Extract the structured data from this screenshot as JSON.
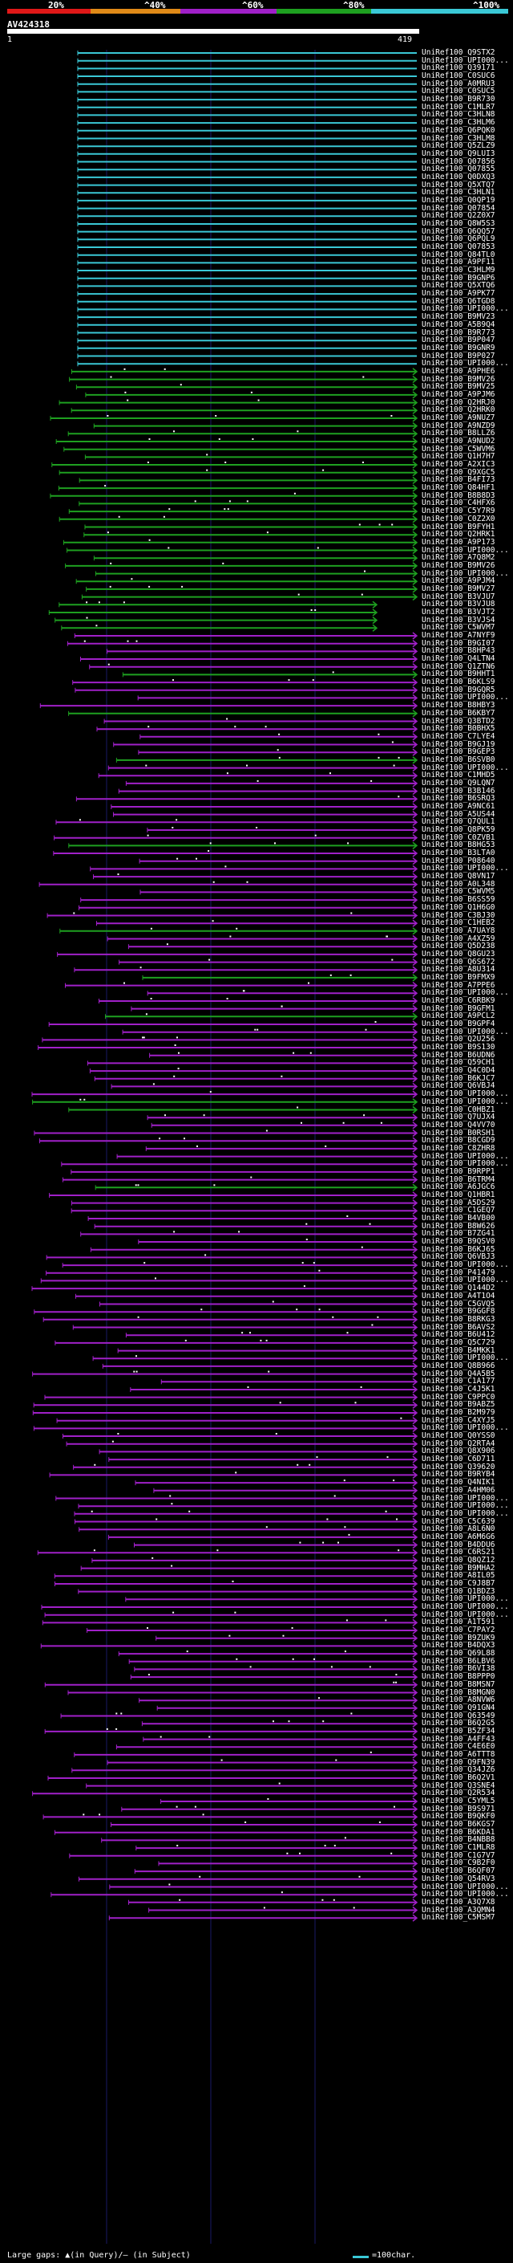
{
  "scale": {
    "labels": [
      "20%",
      "^40%",
      "^60%",
      "^80%",
      "^100%"
    ],
    "colors": [
      "#e01818",
      "#e08a18",
      "#a020c8",
      "#1ea020",
      "#3ac8d6"
    ]
  },
  "query": {
    "name": "AV424318",
    "start": "1",
    "end": "419"
  },
  "hits": [
    "UniRef100_Q9STX2",
    "UniRef100_UPI000...",
    "UniRef100_Q39171",
    "UniRef100_C0SUC6",
    "UniRef100_A0MRU3",
    "UniRef100_C0SUC5",
    "UniRef100_B9R730",
    "UniRef100_C1MLR7",
    "UniRef100_C3HLN8",
    "UniRef100_C3HLM6",
    "UniRef100_Q6PQK0",
    "UniRef100_C3HLM8",
    "UniRef100_Q5ZLZ9",
    "UniRef100_Q9LUI3",
    "UniRef100_Q07856",
    "UniRef100_Q07855",
    "UniRef100_Q0DXQ3",
    "UniRef100_Q5XTQ7",
    "UniRef100_C3HLN1",
    "UniRef100_Q0QP19",
    "UniRef100_Q07854",
    "UniRef100_Q2Z0X7",
    "UniRef100_Q8W5S3",
    "UniRef100_Q6QQ57",
    "UniRef100_Q6PQL9",
    "UniRef100_Q07853",
    "UniRef100_Q84TL0",
    "UniRef100_A9PF11",
    "UniRef100_C3HLM9",
    "UniRef100_B9GNP6",
    "UniRef100_Q5XTQ6",
    "UniRef100_A9PK77",
    "UniRef100_Q6TGD8",
    "UniRef100_UPI000...",
    "UniRef100_B9MV23",
    "UniRef100_A5B9Q4",
    "UniRef100_B9R773",
    "UniRef100_B9P047",
    "UniRef100_B9GNR9",
    "UniRef100_B9P027",
    "UniRef100_UPI000...",
    "UniRef100_A9PHE6",
    "UniRef100_B9MV26",
    "UniRef100_B9MV25",
    "UniRef100_A9PJM6",
    "UniRef100_Q2HRJ0",
    "UniRef100_Q2HRK0",
    "UniRef100_A9NUZ7",
    "UniRef100_A9NZD9",
    "UniRef100_B8LLZ6",
    "UniRef100_A9NUD2",
    "UniRef100_C5WVM6",
    "UniRef100_Q1H7H7",
    "UniRef100_A2XIC3",
    "UniRef100_Q9XGC5",
    "UniRef100_B4FI73",
    "UniRef100_Q84HF1",
    "UniRef100_B8B8D3",
    "UniRef100_C4HFX6",
    "UniRef100_C5Y7R9",
    "UniRef100_C0Z2X0",
    "UniRef100_B9FYH1",
    "UniRef100_Q2HRK1",
    "UniRef100_A9P173",
    "UniRef100_UPI000...",
    "UniRef100_A7Q8M2",
    "UniRef100_B9MV26",
    "UniRef100_UPI000...",
    "UniRef100_A9PJM4",
    "UniRef100_B9MV27",
    "UniRef100_B3VJU7",
    "UniRef100_B3VJU8",
    "UniRef100_B3VJT2",
    "UniRef100_B3VJS4",
    "UniRef100_C5WVM7",
    "UniRef100_A7NYF9",
    "UniRef100_B9GI07",
    "UniRef100_B8HP43",
    "UniRef100_Q4LTN4",
    "UniRef100_Q1ZTN6",
    "UniRef100_B9HHT1",
    "UniRef100_B6KLS9",
    "UniRef100_B9GQR5",
    "UniRef100_UPI000...",
    "UniRef100_B8HBY3",
    "UniRef100_B6KBY7",
    "UniRef100_Q3BTD2",
    "UniRef100_B0BHX5",
    "UniRef100_C7LYE4",
    "UniRef100_B9GJ19",
    "UniRef100_B9GEP3",
    "UniRef100_B6SVB0",
    "UniRef100_UPI000...",
    "UniRef100_C1MHD5",
    "UniRef100_Q9LQN7",
    "UniRef100_B3B146",
    "UniRef100_B6SRQ3",
    "UniRef100_A9NC61",
    "UniRef100_A5US44",
    "UniRef100_Q7QUL1",
    "UniRef100_Q8PK59",
    "UniRef100_C0ZVB1",
    "UniRef100_B8HG53",
    "UniRef100_B3LTA0",
    "UniRef100_P08640",
    "UniRef100_UPI000...",
    "UniRef100_Q8VN17",
    "UniRef100_A0L348",
    "UniRef100_C5WVM5",
    "UniRef100_B6SS59",
    "UniRef100_Q1H6G0",
    "UniRef100_C3BJ30",
    "UniRef100_C1HEB2",
    "UniRef100_A7UAY8",
    "UniRef100_A4XZ59",
    "UniRef100_Q5D238",
    "UniRef100_Q8GU23",
    "UniRef100_Q6S672",
    "UniRef100_A8U314",
    "UniRef100_B9FMX9",
    "UniRef100_A7PPE6",
    "UniRef100_UPI000...",
    "UniRef100_C6RBK9",
    "UniRef100_B9GFM1",
    "UniRef100_A9PCL2",
    "UniRef100_B9GPF4",
    "UniRef100_UPI000...",
    "UniRef100_Q2U256",
    "UniRef100_B9S130",
    "UniRef100_B6UDN6",
    "UniRef100_Q59CH1",
    "UniRef100_Q4C0D4",
    "UniRef100_B6KJC7",
    "UniRef100_Q6VBJ4",
    "UniRef100_UPI000...",
    "UniRef100_UPI000...",
    "UniRef100_C0HBZ1",
    "UniRef100_Q7UJX4",
    "UniRef100_Q4VV70",
    "UniRef100_B0RSH1",
    "UniRef100_B8CGD9",
    "UniRef100_C8ZHR8",
    "UniRef100_UPI000...",
    "UniRef100_UPI000...",
    "UniRef100_B9RPP1",
    "UniRef100_B6TRM4",
    "UniRef100_A6JGC6",
    "UniRef100_Q1HBR1",
    "UniRef100_A5DS29",
    "UniRef100_C1GEQ7",
    "UniRef100_B4VB00",
    "UniRef100_B8W626",
    "UniRef100_B7ZG41",
    "UniRef100_B9QSV0",
    "UniRef100_B6KJ65",
    "UniRef100_Q6VBJ3",
    "UniRef100_UPI000...",
    "UniRef100_P41479",
    "UniRef100_UPI000...",
    "UniRef100_Q144D2",
    "UniRef100_A4T1O4",
    "UniRef100_C5GVQ5",
    "UniRef100_B9GGF8",
    "UniRef100_B8RKG3",
    "UniRef100_B6AVS2",
    "UniRef100_B6U412",
    "UniRef100_Q5C729",
    "UniRef100_B4MKK1",
    "UniRef100_UPI000...",
    "UniRef100_Q8B966",
    "UniRef100_Q4A5B5",
    "UniRef100_C1A177",
    "UniRef100_C4J5K1",
    "UniRef100_C9PPC0",
    "UniRef100_B9ABZ5",
    "UniRef100_B2M979",
    "UniRef100_C4XYJ5",
    "UniRef100_UPI000...",
    "UniRef100_Q0YSS0",
    "UniRef100_Q2RTA4",
    "UniRef100_Q8X906",
    "UniRef100_C6D711",
    "UniRef100_Q39620",
    "UniRef100_B9RYB4",
    "UniRef100_Q4NIK1",
    "UniRef100_A4HM06",
    "UniRef100_UPI000...",
    "UniRef100_UPI000...",
    "UniRef100_UPI000...",
    "UniRef100_C5C639",
    "UniRef100_A8L6N0",
    "UniRef100_A6M6G6",
    "UniRef100_B4DDU6",
    "UniRef100_C6RS21",
    "UniRef100_Q8QZ12",
    "UniRef100_B9MHA2",
    "UniRef100_A8IL05",
    "UniRef100_C9J8B7",
    "UniRef100_Q1BDZ3",
    "UniRef100_UPI000...",
    "UniRef100_UPI000...",
    "UniRef100_UPI000...",
    "UniRef100_A1T591",
    "UniRef100_C7PAY2",
    "UniRef100_B9ZUK9",
    "UniRef100_B4DQX3",
    "UniRef100_Q69L88",
    "UniRef100_B6LBV6",
    "UniRef100_B6VI38",
    "UniRef100_B8PPP0",
    "UniRef100_B8MSN7",
    "UniRef100_B8MGN0",
    "UniRef100_A8NVW6",
    "UniRef100_Q91GN4",
    "UniRef100_Q63549",
    "UniRef100_B6Q2G5",
    "UniRef100_B5ZF34",
    "UniRef100_A4FF43",
    "UniRef100_C4E6E0",
    "UniRef100_A6TTT8",
    "UniRef100_Q9FN39",
    "UniRef100_Q34JZ6",
    "UniRef100_B6Q2V1",
    "UniRef100_Q3SNE4",
    "UniRef100_Q2R534",
    "UniRef100_C5YML5",
    "UniRef100_B9S971",
    "UniRef100_B9QKF0",
    "UniRef100_B6KGS7",
    "UniRef100_B6KDA1",
    "UniRef100_B4NBB8",
    "UniRef100_C1MLR8",
    "UniRef100_C1G7V7",
    "UniRef100_C9B2F0",
    "UniRef100_B6QF07",
    "UniRef100_Q54RV3",
    "UniRef100_UPI000...",
    "UniRef100_UPI000...",
    "UniRef100_A3Q7X8",
    "UniRef100_A3QMN4",
    "UniRef100_C5MSM7"
  ],
  "legend": {
    "gaps": "Large gaps: ▲(in Query)/— (in Subject)",
    "scale": "=100char."
  }
}
